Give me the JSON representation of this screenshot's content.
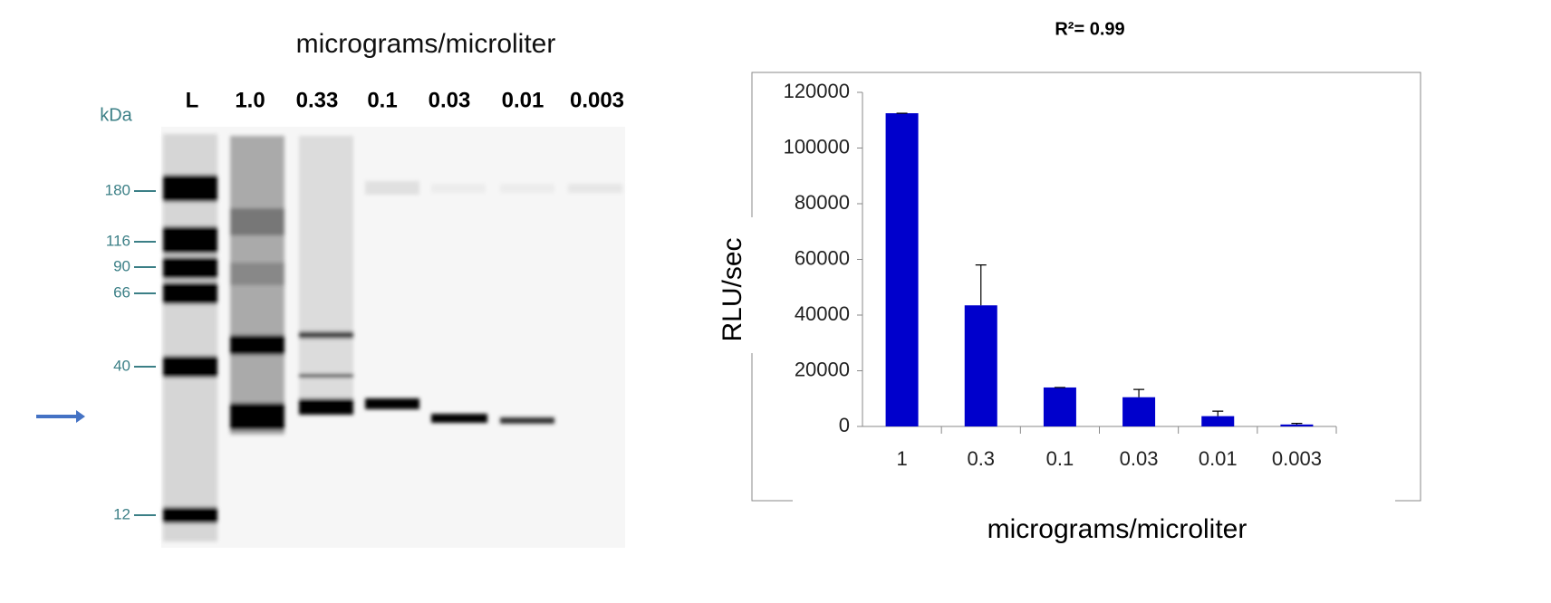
{
  "gel": {
    "title": "micrograms/microliter",
    "unit_label": "kDa",
    "lanes": [
      "L",
      "1.0",
      "0.33",
      "0.1",
      "0.03",
      "0.01",
      "0.003"
    ],
    "markers": [
      "180",
      "116",
      "90",
      "66",
      "40",
      "12"
    ]
  },
  "chart_data": {
    "type": "bar",
    "title": "R²= 0.99",
    "x_label": "micrograms/microliter",
    "y_label": "RLU/sec",
    "categories": [
      "1",
      "0.3",
      "0.1",
      "0.03",
      "0.01",
      "0.003"
    ],
    "values": [
      112500,
      43500,
      14000,
      10500,
      3700,
      700
    ],
    "errors": [
      0,
      14500,
      0,
      2800,
      1800,
      400
    ],
    "color": "#0000cc",
    "ylim": [
      0,
      120000
    ],
    "yticks": [
      0,
      20000,
      40000,
      60000,
      80000,
      100000,
      120000
    ]
  }
}
